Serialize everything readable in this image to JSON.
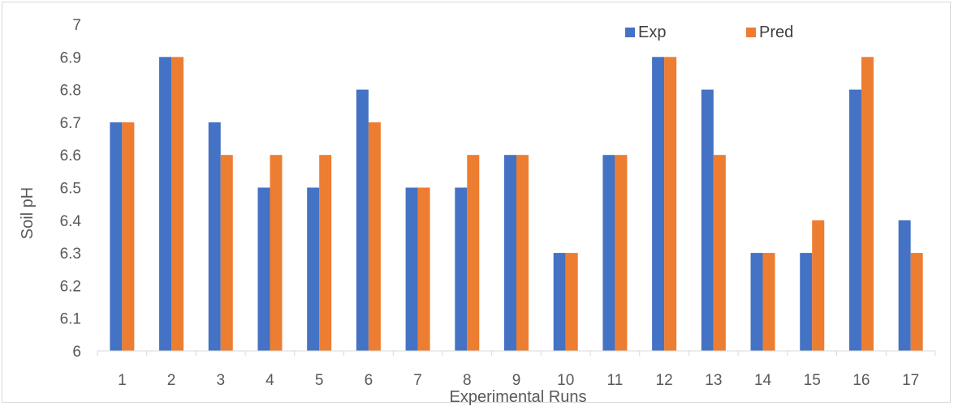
{
  "chart_data": {
    "type": "bar",
    "title": "",
    "xlabel": "Experimental Runs",
    "ylabel": "Soil pH",
    "ylim": [
      6,
      7
    ],
    "yticks": [
      "6",
      "6.1",
      "6.2",
      "6.3",
      "6.4",
      "6.5",
      "6.6",
      "6.7",
      "6.8",
      "6.9",
      "7"
    ],
    "categories": [
      "1",
      "2",
      "3",
      "4",
      "5",
      "6",
      "7",
      "8",
      "9",
      "10",
      "11",
      "12",
      "13",
      "14",
      "15",
      "16",
      "17"
    ],
    "series": [
      {
        "name": "Exp",
        "color": "#4472c4",
        "values": [
          6.7,
          6.9,
          6.7,
          6.5,
          6.5,
          6.8,
          6.5,
          6.5,
          6.6,
          6.3,
          6.6,
          6.9,
          6.8,
          6.3,
          6.3,
          6.8,
          6.4
        ]
      },
      {
        "name": "Pred",
        "color": "#ed7d31",
        "values": [
          6.7,
          6.9,
          6.6,
          6.6,
          6.6,
          6.7,
          6.5,
          6.6,
          6.6,
          6.3,
          6.6,
          6.9,
          6.6,
          6.3,
          6.4,
          6.9,
          6.3
        ]
      }
    ],
    "grid": false,
    "legend_position": "top-right"
  }
}
